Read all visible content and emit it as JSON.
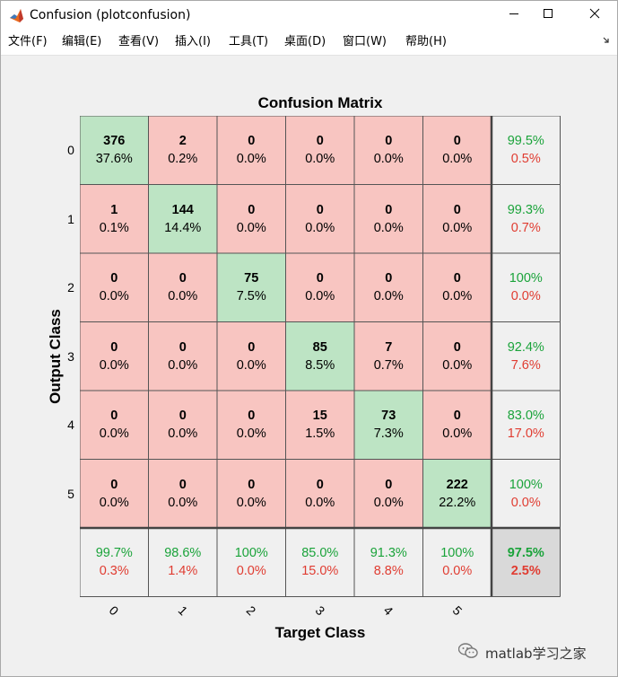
{
  "window": {
    "title": "Confusion (plotconfusion)",
    "icon": "matlab-logo-icon",
    "controls": [
      "minimize-icon",
      "maximize-icon",
      "close-icon"
    ]
  },
  "menu": {
    "items": [
      "文件(F)",
      "编辑(E)",
      "查看(V)",
      "插入(I)",
      "工具(T)",
      "桌面(D)",
      "窗口(W)",
      "帮助(H)"
    ],
    "dock_icon": "dock-arrow-icon"
  },
  "colors": {
    "correct": "#bde4c4",
    "incorrect": "#f8c5c1",
    "summary": "#f0f0f0",
    "overall": "#d9d9d9",
    "green_text": "#1aa33a",
    "red_text": "#e03c31",
    "grid": "#555555"
  },
  "chart_data": {
    "type": "heatmap",
    "title": "Confusion Matrix",
    "xlabel": "Target Class",
    "ylabel": "Output Class",
    "classes": [
      "0",
      "1",
      "2",
      "3",
      "4",
      "5"
    ],
    "rows": [
      {
        "cells": [
          [
            "376",
            "37.6%"
          ],
          [
            "2",
            "0.2%"
          ],
          [
            "0",
            "0.0%"
          ],
          [
            "0",
            "0.0%"
          ],
          [
            "0",
            "0.0%"
          ],
          [
            "0",
            "0.0%"
          ]
        ],
        "summary": [
          "99.5%",
          "0.5%"
        ]
      },
      {
        "cells": [
          [
            "1",
            "0.1%"
          ],
          [
            "144",
            "14.4%"
          ],
          [
            "0",
            "0.0%"
          ],
          [
            "0",
            "0.0%"
          ],
          [
            "0",
            "0.0%"
          ],
          [
            "0",
            "0.0%"
          ]
        ],
        "summary": [
          "99.3%",
          "0.7%"
        ]
      },
      {
        "cells": [
          [
            "0",
            "0.0%"
          ],
          [
            "0",
            "0.0%"
          ],
          [
            "75",
            "7.5%"
          ],
          [
            "0",
            "0.0%"
          ],
          [
            "0",
            "0.0%"
          ],
          [
            "0",
            "0.0%"
          ]
        ],
        "summary": [
          "100%",
          "0.0%"
        ]
      },
      {
        "cells": [
          [
            "0",
            "0.0%"
          ],
          [
            "0",
            "0.0%"
          ],
          [
            "0",
            "0.0%"
          ],
          [
            "85",
            "8.5%"
          ],
          [
            "7",
            "0.7%"
          ],
          [
            "0",
            "0.0%"
          ]
        ],
        "summary": [
          "92.4%",
          "7.6%"
        ]
      },
      {
        "cells": [
          [
            "0",
            "0.0%"
          ],
          [
            "0",
            "0.0%"
          ],
          [
            "0",
            "0.0%"
          ],
          [
            "15",
            "1.5%"
          ],
          [
            "73",
            "7.3%"
          ],
          [
            "0",
            "0.0%"
          ]
        ],
        "summary": [
          "83.0%",
          "17.0%"
        ]
      },
      {
        "cells": [
          [
            "0",
            "0.0%"
          ],
          [
            "0",
            "0.0%"
          ],
          [
            "0",
            "0.0%"
          ],
          [
            "0",
            "0.0%"
          ],
          [
            "0",
            "0.0%"
          ],
          [
            "222",
            "22.2%"
          ]
        ],
        "summary": [
          "100%",
          "0.0%"
        ]
      }
    ],
    "column_summary": [
      [
        "99.7%",
        "0.3%"
      ],
      [
        "98.6%",
        "1.4%"
      ],
      [
        "100%",
        "0.0%"
      ],
      [
        "85.0%",
        "15.0%"
      ],
      [
        "91.3%",
        "8.8%"
      ],
      [
        "100%",
        "0.0%"
      ]
    ],
    "overall": [
      "97.5%",
      "2.5%"
    ]
  },
  "watermark": {
    "text": "matlab学习之家",
    "icon": "wechat-icon"
  }
}
